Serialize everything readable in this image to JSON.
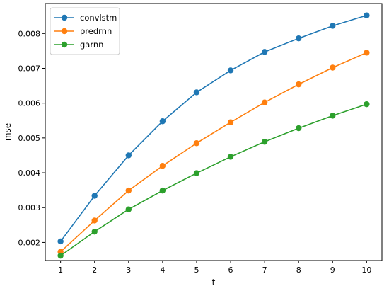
{
  "chart_data": {
    "type": "line",
    "title": "",
    "xlabel": "t",
    "ylabel": "mse",
    "x": [
      1,
      2,
      3,
      4,
      5,
      6,
      7,
      8,
      9,
      10
    ],
    "xlim": [
      0.55,
      10.45
    ],
    "ylim": [
      0.00148,
      0.00886
    ],
    "x_ticks": [
      1,
      2,
      3,
      4,
      5,
      6,
      7,
      8,
      9,
      10
    ],
    "y_ticks": [
      0.002,
      0.003,
      0.004,
      0.005,
      0.006,
      0.007,
      0.008
    ],
    "y_tick_labels": [
      "0.002",
      "0.003",
      "0.004",
      "0.005",
      "0.006",
      "0.007",
      "0.008"
    ],
    "grid": false,
    "legend_position": "top-left",
    "series": [
      {
        "name": "convlstm",
        "color": "#1f77b4",
        "values": [
          0.00203,
          0.00334,
          0.0045,
          0.00548,
          0.00631,
          0.00694,
          0.00747,
          0.00786,
          0.00822,
          0.00852
        ]
      },
      {
        "name": "predrnn",
        "color": "#ff7f0e",
        "values": [
          0.00173,
          0.00263,
          0.00349,
          0.0042,
          0.00485,
          0.00545,
          0.00602,
          0.00654,
          0.00702,
          0.00745
        ]
      },
      {
        "name": "garnn",
        "color": "#2ca02c",
        "values": [
          0.00162,
          0.00231,
          0.00295,
          0.00349,
          0.00399,
          0.00446,
          0.00489,
          0.00528,
          0.00564,
          0.00597
        ]
      }
    ]
  }
}
